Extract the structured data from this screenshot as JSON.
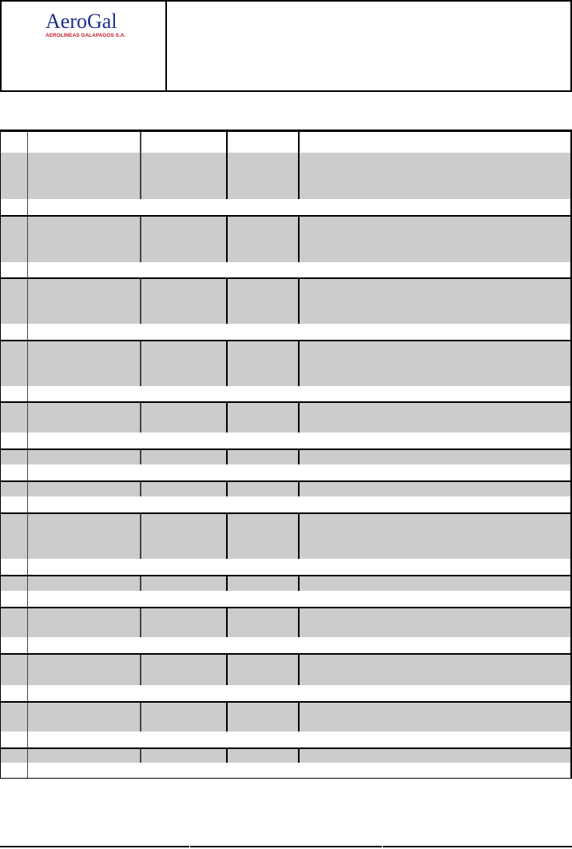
{
  "header": {
    "logo": {
      "name": "AeroGal",
      "tagline": "AEROLINEAS GALAPAGOS S.A."
    }
  },
  "colors": {
    "row_shade": "#cccccc",
    "logo_blue": "#1a2e8c",
    "logo_red": "#c0202a"
  }
}
